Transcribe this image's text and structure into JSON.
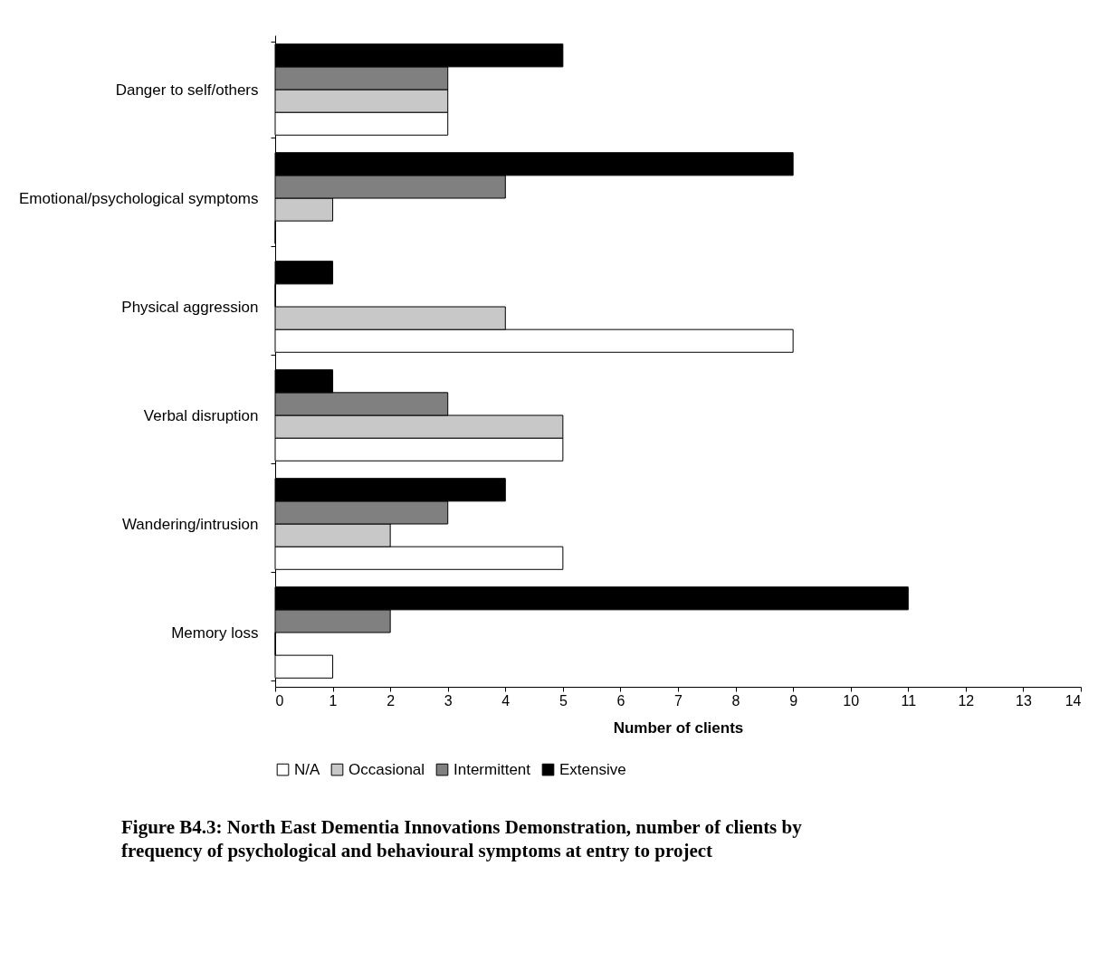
{
  "chart_data": {
    "type": "bar",
    "orientation": "horizontal",
    "title": "Figure B4.3: North East Dementia Innovations Demonstration, number of clients by frequency of psychological and behavioural symptoms at entry to project",
    "xlabel": "Number of clients",
    "categories": [
      "Danger to self/others",
      "Emotional/psychological symptoms",
      "Physical aggression",
      "Verbal disruption",
      "Wandering/intrusion",
      "Memory loss"
    ],
    "series": [
      {
        "name": "N/A",
        "color": "#ffffff",
        "values": [
          3,
          0,
          9,
          5,
          5,
          1
        ]
      },
      {
        "name": "Occasional",
        "color": "#c8c8c8",
        "values": [
          3,
          1,
          4,
          5,
          2,
          0
        ]
      },
      {
        "name": "Intermittent",
        "color": "#808080",
        "values": [
          3,
          4,
          0,
          3,
          3,
          2
        ]
      },
      {
        "name": "Extensive",
        "color": "#000000",
        "values": [
          5,
          9,
          1,
          1,
          4,
          11
        ]
      }
    ],
    "xlim": [
      0,
      14
    ],
    "xticks": [
      0,
      1,
      2,
      3,
      4,
      5,
      6,
      7,
      8,
      9,
      10,
      11,
      12,
      13,
      14
    ],
    "grid": false,
    "legend": "bottom"
  }
}
